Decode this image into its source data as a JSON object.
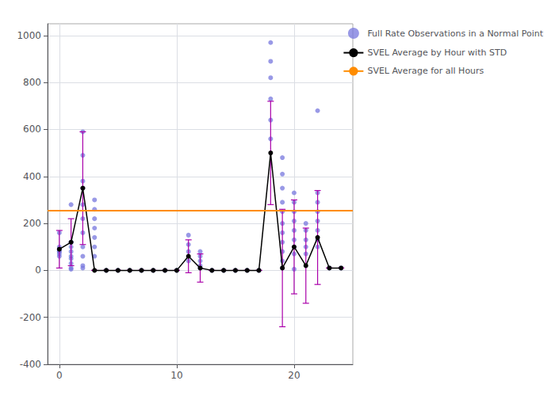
{
  "chart_data": {
    "type": "scatter",
    "xlim": [
      -1,
      25
    ],
    "xticks": [
      0,
      10,
      20
    ],
    "ylim": [
      -400,
      1050
    ],
    "yticks": [
      -400,
      -200,
      0,
      200,
      400,
      600,
      800,
      1000
    ],
    "grid": true,
    "legend": "right",
    "series": [
      {
        "name": "Full Rate Observations in a Normal Point",
        "type": "scatter",
        "color": "#7777dd",
        "x": [
          0,
          0,
          0,
          0,
          0,
          0,
          0,
          1,
          1,
          1,
          1,
          1,
          1,
          1,
          1,
          1,
          1,
          2,
          2,
          2,
          2,
          2,
          2,
          2,
          2,
          2,
          2,
          2,
          3,
          3,
          3,
          3,
          3,
          3,
          3,
          4,
          5,
          6,
          7,
          8,
          9,
          10,
          11,
          11,
          11,
          11,
          12,
          12,
          12,
          12,
          12,
          13,
          14,
          15,
          16,
          17,
          18,
          18,
          18,
          18,
          18,
          18,
          19,
          19,
          19,
          19,
          19,
          19,
          19,
          19,
          19,
          19,
          19,
          20,
          20,
          20,
          20,
          20,
          20,
          20,
          20,
          20,
          21,
          21,
          21,
          21,
          21,
          22,
          22,
          22,
          22,
          22,
          22,
          22,
          22,
          23,
          24
        ],
        "values": [
          60,
          70,
          80,
          90,
          100,
          160,
          80,
          280,
          120,
          120,
          100,
          80,
          60,
          50,
          30,
          10,
          5,
          590,
          490,
          380,
          350,
          280,
          220,
          160,
          100,
          60,
          20,
          10,
          300,
          260,
          220,
          180,
          140,
          100,
          60,
          0,
          0,
          0,
          0,
          0,
          0,
          0,
          150,
          110,
          80,
          40,
          80,
          60,
          40,
          20,
          10,
          0,
          0,
          0,
          0,
          0,
          970,
          890,
          820,
          730,
          640,
          560,
          480,
          410,
          350,
          290,
          250,
          200,
          160,
          120,
          80,
          40,
          10,
          330,
          290,
          250,
          210,
          170,
          130,
          100,
          70,
          5,
          200,
          170,
          130,
          100,
          70,
          680,
          330,
          290,
          250,
          210,
          170,
          130,
          100,
          10,
          10
        ]
      },
      {
        "name": "SVEL Average by Hour with STD",
        "type": "line",
        "color": "black",
        "marker": "circle",
        "x": [
          0,
          1,
          2,
          3,
          4,
          5,
          6,
          7,
          8,
          9,
          10,
          11,
          12,
          13,
          14,
          15,
          16,
          17,
          18,
          19,
          20,
          21,
          22,
          23,
          24
        ],
        "values": [
          90,
          120,
          350,
          0,
          0,
          0,
          0,
          0,
          0,
          0,
          0,
          60,
          10,
          0,
          0,
          0,
          0,
          0,
          500,
          10,
          100,
          20,
          140,
          10,
          10
        ],
        "error_bars": {
          "color": "#aa00aa",
          "values": [
            80,
            100,
            240,
            0,
            0,
            0,
            0,
            0,
            0,
            0,
            0,
            70,
            60,
            0,
            0,
            0,
            0,
            0,
            220,
            250,
            200,
            160,
            200,
            0,
            0
          ]
        }
      },
      {
        "name": "SVEL Average for all Hours",
        "type": "hline",
        "color": "#ff8c00",
        "y": 255
      }
    ]
  }
}
